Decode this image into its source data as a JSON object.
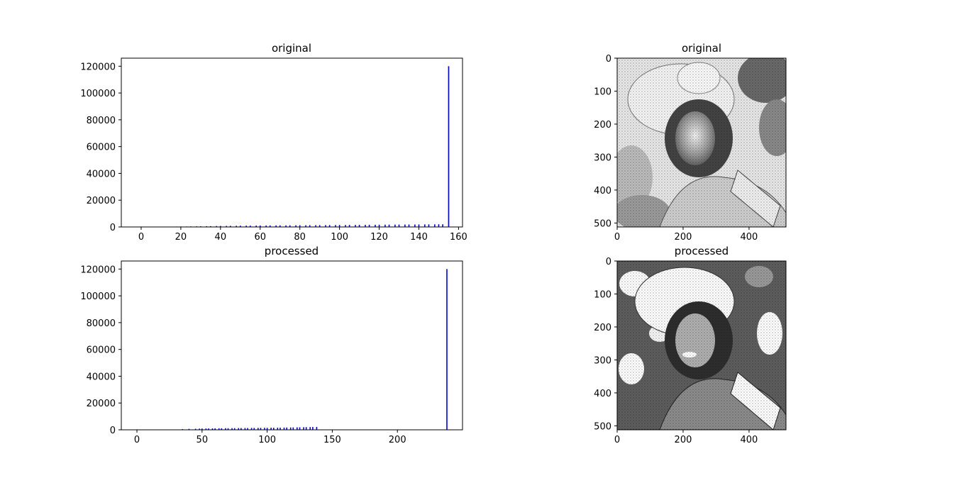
{
  "panels": {
    "hist_original": {
      "title": "original",
      "chart_data": {
        "type": "bar",
        "title": "original",
        "xlabel": "",
        "ylabel": "",
        "xlim": [
          -10,
          162
        ],
        "ylim": [
          0,
          126000
        ],
        "x_ticks": [
          0,
          20,
          40,
          60,
          80,
          100,
          120,
          140,
          160
        ],
        "y_ticks": [
          0,
          20000,
          40000,
          60000,
          80000,
          100000,
          120000
        ],
        "color": "#0000ff",
        "x": [
          0,
          15,
          18,
          20,
          23,
          25,
          28,
          30,
          33,
          35,
          38,
          40,
          43,
          45,
          48,
          50,
          53,
          55,
          58,
          60,
          63,
          65,
          68,
          70,
          73,
          75,
          78,
          80,
          83,
          85,
          88,
          90,
          93,
          95,
          98,
          100,
          103,
          105,
          108,
          110,
          113,
          115,
          118,
          120,
          123,
          125,
          128,
          130,
          133,
          135,
          138,
          140,
          143,
          145,
          148,
          150,
          152,
          155
        ],
        "values": [
          300,
          250,
          300,
          350,
          350,
          400,
          450,
          500,
          550,
          600,
          700,
          750,
          800,
          850,
          900,
          950,
          1000,
          1000,
          1050,
          1100,
          1100,
          1150,
          1150,
          1200,
          1200,
          1250,
          1250,
          1300,
          1300,
          1350,
          1350,
          1400,
          1400,
          1450,
          1450,
          1500,
          1500,
          1550,
          1550,
          1600,
          1600,
          1650,
          1650,
          1700,
          1700,
          1750,
          1750,
          1800,
          1800,
          1850,
          1850,
          1900,
          1900,
          1950,
          1950,
          2000,
          2000,
          120000
        ]
      }
    },
    "hist_processed": {
      "title": "processed",
      "chart_data": {
        "type": "bar",
        "title": "processed",
        "xlabel": "",
        "ylabel": "",
        "xlim": [
          -12,
          250
        ],
        "ylim": [
          0,
          126000
        ],
        "x_ticks": [
          0,
          50,
          100,
          150,
          200
        ],
        "y_ticks": [
          0,
          20000,
          40000,
          60000,
          80000,
          100000,
          120000
        ],
        "color": "#0000ff",
        "x": [
          0,
          35,
          40,
          45,
          48,
          50,
          53,
          55,
          58,
          60,
          63,
          65,
          68,
          70,
          73,
          75,
          78,
          80,
          83,
          85,
          88,
          90,
          93,
          95,
          98,
          100,
          103,
          105,
          108,
          110,
          113,
          115,
          118,
          120,
          123,
          125,
          128,
          130,
          133,
          135,
          138,
          238
        ],
        "values": [
          300,
          500,
          700,
          800,
          900,
          950,
          1000,
          1000,
          1050,
          1100,
          1150,
          1150,
          1200,
          1200,
          1250,
          1250,
          1300,
          1300,
          1350,
          1350,
          1400,
          1400,
          1450,
          1450,
          1500,
          1500,
          1550,
          1550,
          1600,
          1600,
          1650,
          1700,
          1750,
          1800,
          1850,
          1900,
          1950,
          2000,
          2050,
          2100,
          2150,
          120000
        ]
      }
    },
    "image_original": {
      "title": "original",
      "x_ticks": [
        0,
        200,
        400
      ],
      "y_ticks": [
        0,
        100,
        200,
        300,
        400,
        500
      ],
      "extent": [
        512,
        512
      ]
    },
    "image_processed": {
      "title": "processed",
      "x_ticks": [
        0,
        200,
        400
      ],
      "y_ticks": [
        0,
        100,
        200,
        300,
        400,
        500
      ],
      "extent": [
        512,
        512
      ]
    }
  }
}
